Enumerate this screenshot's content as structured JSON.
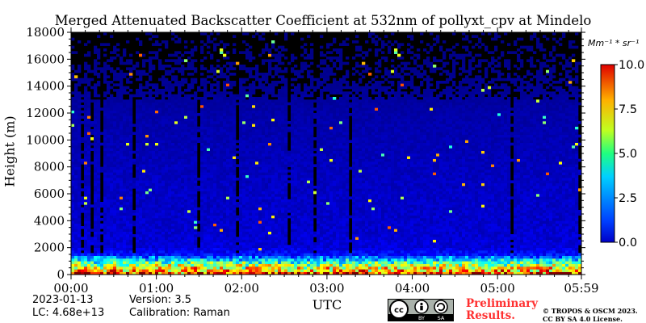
{
  "chart_data": {
    "type": "heatmap",
    "title": "Merged Attenuated Backscatter Coefficient at 532nm of pollyxt_cpv at Mindelo",
    "xlabel": "UTC",
    "ylabel": "Height (m)",
    "x_tick_labels": [
      "00:00",
      "01:00",
      "02:00",
      "03:00",
      "04:00",
      "05:00",
      "05:59"
    ],
    "x_tick_hours": [
      0,
      1,
      2,
      3,
      4,
      5,
      5.983
    ],
    "xlim_hours": [
      0,
      5.983
    ],
    "y_ticks": [
      0,
      2000,
      4000,
      6000,
      8000,
      10000,
      12000,
      14000,
      16000,
      18000
    ],
    "ylim": [
      0,
      18000
    ],
    "colorbar": {
      "unit": "Mm⁻¹ * sr⁻¹",
      "ticks": [
        "0.0",
        "2.5",
        "5.0",
        "7.5",
        "10.0"
      ],
      "tick_values": [
        0,
        2.5,
        5,
        7.5,
        10
      ],
      "range": [
        0,
        10
      ],
      "colormap": "jet"
    },
    "profile": {
      "height_m": [
        0,
        300,
        600,
        900,
        1200,
        1500,
        2000,
        3000,
        4000,
        6000,
        8000,
        10000,
        12000,
        14000,
        16000,
        18000
      ],
      "typical_value": [
        8.5,
        6.8,
        5.6,
        4.2,
        2.6,
        1.4,
        0.9,
        0.8,
        0.75,
        0.7,
        0.6,
        0.5,
        0.4,
        0.2,
        0.1,
        0.05
      ]
    },
    "grid": false
  },
  "meta": {
    "date": "2023-01-13",
    "lc": "LC: 4.68e+13",
    "version": "Version: 3.5",
    "calibration": "Calibration: Raman",
    "preliminary": [
      "Preliminary",
      "Results."
    ],
    "copyright": [
      "© TROPOS & OSCM 2023.",
      "CC BY SA 4.0 License."
    ],
    "cc_badge": [
      "cc",
      "BY",
      "SA"
    ]
  }
}
